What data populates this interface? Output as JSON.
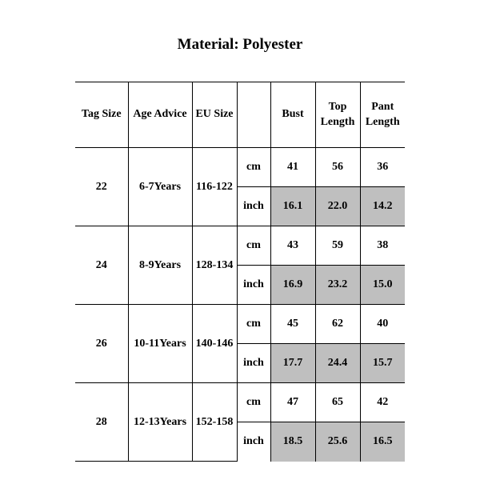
{
  "title": "Material: Polyester",
  "table": {
    "columns": [
      "Tag Size",
      "Age Advice",
      "EU Size",
      "",
      "Bust",
      "Top Length",
      "Pant Length"
    ],
    "shaded_color": "#bfbfbf",
    "rows": [
      {
        "tag": "22",
        "age": "6-7Years",
        "eu": "116-122",
        "cm": {
          "unit": "cm",
          "bust": "41",
          "top": "56",
          "pant": "36"
        },
        "inch": {
          "unit": "inch",
          "bust": "16.1",
          "top": "22.0",
          "pant": "14.2"
        }
      },
      {
        "tag": "24",
        "age": "8-9Years",
        "eu": "128-134",
        "cm": {
          "unit": "cm",
          "bust": "43",
          "top": "59",
          "pant": "38"
        },
        "inch": {
          "unit": "inch",
          "bust": "16.9",
          "top": "23.2",
          "pant": "15.0"
        }
      },
      {
        "tag": "26",
        "age": "10-11Years",
        "eu": "140-146",
        "cm": {
          "unit": "cm",
          "bust": "45",
          "top": "62",
          "pant": "40"
        },
        "inch": {
          "unit": "inch",
          "bust": "17.7",
          "top": "24.4",
          "pant": "15.7"
        }
      },
      {
        "tag": "28",
        "age": "12-13Years",
        "eu": "152-158",
        "cm": {
          "unit": "cm",
          "bust": "47",
          "top": "65",
          "pant": "42"
        },
        "inch": {
          "unit": "inch",
          "bust": "18.5",
          "top": "25.6",
          "pant": "16.5"
        }
      }
    ]
  }
}
